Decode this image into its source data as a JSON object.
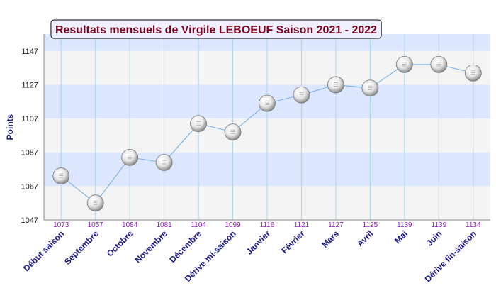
{
  "chart_data": {
    "type": "line",
    "title": "Resultats mensuels de Virgile LEBOEUF Saison 2021 - 2022",
    "ylabel": "Points",
    "xlabel": "",
    "ylim": [
      1047,
      1157
    ],
    "yticks": [
      1047,
      1067,
      1087,
      1107,
      1127,
      1147
    ],
    "grid": true,
    "categories": [
      "Début saison",
      "Septembre",
      "Octobre",
      "Novembre",
      "Décembre",
      "Dérive mi-saison",
      "Janvier",
      "Février",
      "Mars",
      "Avril",
      "Mai",
      "Juin",
      "Dérive fin-saison"
    ],
    "series": [
      {
        "values": [
          1073,
          1057,
          1084,
          1081,
          1104,
          1099,
          1116,
          1121,
          1127,
          1125,
          1139,
          1139,
          1134
        ]
      }
    ],
    "data_labels": [
      "1073",
      "1057",
      "1084",
      "1081",
      "1104",
      "1099",
      "1116",
      "1121",
      "1127",
      "1125",
      "1139",
      "1139",
      "1134"
    ],
    "colors": {
      "line": "#6aaee6",
      "band_light": "#f4f4f4",
      "band_blue": "#dde6ff",
      "vgrid": "#a9d6ee",
      "data_label": "#8a1fb5",
      "x_label": "#1a1a8e",
      "title": "#7a0019"
    }
  }
}
